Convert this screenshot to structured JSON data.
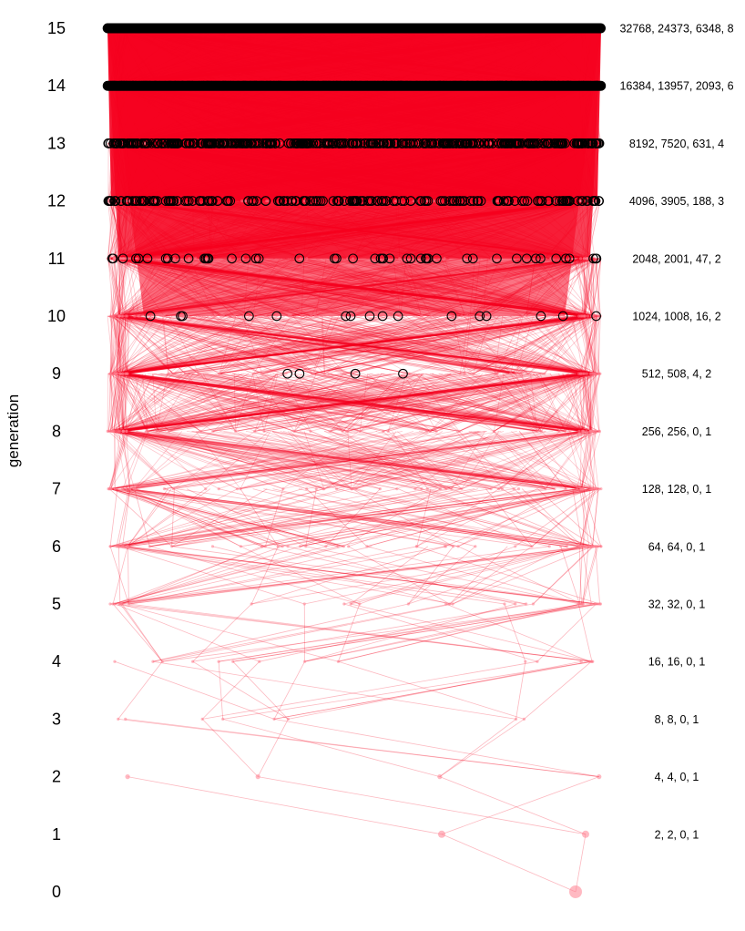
{
  "chart_data": {
    "type": "scatter",
    "title": "",
    "xlabel": "",
    "ylabel": "generation",
    "ylim": [
      0,
      15
    ],
    "grid": false,
    "legend": "none",
    "y_ticks": [
      "0",
      "1",
      "2",
      "3",
      "4",
      "5",
      "6",
      "7",
      "8",
      "9",
      "10",
      "11",
      "12",
      "13",
      "14",
      "15"
    ],
    "line_color": "#f5001e",
    "point_color": "#ff8090",
    "highlight_marker": "open-circle-black",
    "generations": [
      {
        "generation": 0,
        "annotation": "",
        "count": 1,
        "highlighted": 0
      },
      {
        "generation": 1,
        "annotation": "2, 2, 0, 1",
        "count": 2,
        "highlighted": 0
      },
      {
        "generation": 2,
        "annotation": "4, 4, 0, 1",
        "count": 4,
        "highlighted": 0
      },
      {
        "generation": 3,
        "annotation": "8, 8, 0, 1",
        "count": 8,
        "highlighted": 0
      },
      {
        "generation": 4,
        "annotation": "16, 16, 0, 1",
        "count": 16,
        "highlighted": 0
      },
      {
        "generation": 5,
        "annotation": "32, 32, 0, 1",
        "count": 32,
        "highlighted": 0
      },
      {
        "generation": 6,
        "annotation": "64, 64, 0, 1",
        "count": 64,
        "highlighted": 0
      },
      {
        "generation": 7,
        "annotation": "128, 128, 0, 1",
        "count": 128,
        "highlighted": 0
      },
      {
        "generation": 8,
        "annotation": "256, 256, 0, 1",
        "count": 256,
        "highlighted": 0
      },
      {
        "generation": 9,
        "annotation": "512, 508, 4, 2",
        "count": 512,
        "highlighted": 4
      },
      {
        "generation": 10,
        "annotation": "1024, 1008, 16, 2",
        "count": 1024,
        "highlighted": 16
      },
      {
        "generation": 11,
        "annotation": "2048, 2001, 47, 2",
        "count": 2048,
        "highlighted": 47
      },
      {
        "generation": 12,
        "annotation": "4096, 3905, 188, 3",
        "count": 4096,
        "highlighted": 188
      },
      {
        "generation": 13,
        "annotation": "8192, 7520, 631, 4",
        "count": 8192,
        "highlighted": 631
      },
      {
        "generation": 14,
        "annotation": "16384, 13957, 2093, 6",
        "count": 16384,
        "highlighted": 2093
      },
      {
        "generation": 15,
        "annotation": "32768, 24373, 6348, 8",
        "count": 32768,
        "highlighted": 6348
      }
    ]
  }
}
